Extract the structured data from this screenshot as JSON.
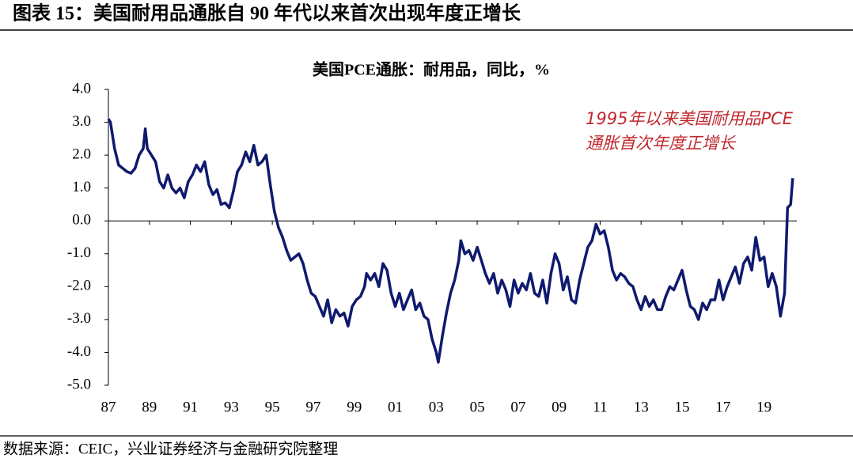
{
  "header": {
    "title": "图表 15：美国耐用品通胀自 90 年代以来首次出现年度正增长"
  },
  "footer": {
    "source": "数据来源：CEIC，兴业证券经济与金融研究院整理"
  },
  "chart_data": {
    "type": "line",
    "title": "美国PCE通胀：耐用品，同比，%",
    "annotation": [
      "1995年以来美国耐用品PCE",
      "通胀首次年度正增长"
    ],
    "color": "#0f1a6e",
    "annotation_color": "#c0282d",
    "xlim": [
      1987,
      2020.6
    ],
    "xticks": [
      {
        "value": 1987,
        "label": "87"
      },
      {
        "value": 1989,
        "label": "89"
      },
      {
        "value": 1991,
        "label": "91"
      },
      {
        "value": 1993,
        "label": "93"
      },
      {
        "value": 1995,
        "label": "95"
      },
      {
        "value": 1997,
        "label": "97"
      },
      {
        "value": 1999,
        "label": "99"
      },
      {
        "value": 2001,
        "label": "01"
      },
      {
        "value": 2003,
        "label": "03"
      },
      {
        "value": 2005,
        "label": "05"
      },
      {
        "value": 2007,
        "label": "07"
      },
      {
        "value": 2009,
        "label": "09"
      },
      {
        "value": 2011,
        "label": "11"
      },
      {
        "value": 2013,
        "label": "13"
      },
      {
        "value": 2015,
        "label": "15"
      },
      {
        "value": 2017,
        "label": "17"
      },
      {
        "value": 2019,
        "label": "19"
      }
    ],
    "ylim": [
      -5,
      4
    ],
    "yticks": [
      {
        "value": -5,
        "label": "-5.0"
      },
      {
        "value": -4,
        "label": "-4.0"
      },
      {
        "value": -3,
        "label": "-3.0"
      },
      {
        "value": -2,
        "label": "-2.0"
      },
      {
        "value": -1,
        "label": "-1.0"
      },
      {
        "value": 0,
        "label": "0.0"
      },
      {
        "value": 1,
        "label": "1.0"
      },
      {
        "value": 2,
        "label": "2.0"
      },
      {
        "value": 3,
        "label": "3.0"
      },
      {
        "value": 4,
        "label": "4.0"
      }
    ],
    "x": [
      1987.0,
      1987.1,
      1987.3,
      1987.5,
      1987.7,
      1987.9,
      1988.1,
      1988.3,
      1988.5,
      1988.7,
      1988.8,
      1988.9,
      1989.1,
      1989.3,
      1989.5,
      1989.7,
      1989.9,
      1990.1,
      1990.3,
      1990.5,
      1990.7,
      1990.9,
      1991.1,
      1991.3,
      1991.5,
      1991.7,
      1991.9,
      1992.1,
      1992.3,
      1992.5,
      1992.7,
      1992.9,
      1993.1,
      1993.3,
      1993.5,
      1993.7,
      1993.9,
      1994.1,
      1994.3,
      1994.5,
      1994.7,
      1994.9,
      1995.1,
      1995.3,
      1995.5,
      1995.7,
      1995.9,
      1996.1,
      1996.3,
      1996.5,
      1996.7,
      1996.9,
      1997.1,
      1997.3,
      1997.5,
      1997.7,
      1997.9,
      1998.1,
      1998.3,
      1998.5,
      1998.7,
      1998.9,
      1999.1,
      1999.3,
      1999.5,
      1999.6,
      1999.8,
      2000.0,
      2000.2,
      2000.4,
      2000.6,
      2000.8,
      2001.0,
      2001.2,
      2001.4,
      2001.6,
      2001.8,
      2002.0,
      2002.2,
      2002.4,
      2002.6,
      2002.8,
      2003.0,
      2003.1,
      2003.3,
      2003.5,
      2003.7,
      2003.9,
      2004.1,
      2004.2,
      2004.4,
      2004.6,
      2004.8,
      2005.0,
      2005.2,
      2005.4,
      2005.6,
      2005.8,
      2006.0,
      2006.2,
      2006.4,
      2006.6,
      2006.8,
      2007.0,
      2007.2,
      2007.4,
      2007.6,
      2007.8,
      2008.0,
      2008.2,
      2008.4,
      2008.6,
      2008.8,
      2009.0,
      2009.2,
      2009.4,
      2009.6,
      2009.8,
      2010.0,
      2010.2,
      2010.4,
      2010.6,
      2010.8,
      2011.0,
      2011.2,
      2011.4,
      2011.6,
      2011.8,
      2012.0,
      2012.2,
      2012.4,
      2012.6,
      2012.8,
      2013.0,
      2013.2,
      2013.4,
      2013.6,
      2013.8,
      2014.0,
      2014.2,
      2014.4,
      2014.6,
      2014.8,
      2015.0,
      2015.2,
      2015.4,
      2015.6,
      2015.8,
      2016.0,
      2016.2,
      2016.4,
      2016.6,
      2016.8,
      2017.0,
      2017.2,
      2017.4,
      2017.6,
      2017.8,
      2018.0,
      2018.2,
      2018.4,
      2018.6,
      2018.8,
      2019.0,
      2019.2,
      2019.4,
      2019.6,
      2019.8,
      2020.0,
      2020.15,
      2020.3,
      2020.4
    ],
    "values": [
      3.1,
      3.0,
      2.2,
      1.7,
      1.6,
      1.5,
      1.45,
      1.6,
      2.0,
      2.2,
      2.8,
      2.2,
      2.0,
      1.8,
      1.2,
      1.0,
      1.4,
      1.0,
      0.85,
      1.0,
      0.7,
      1.2,
      1.4,
      1.7,
      1.5,
      1.8,
      1.1,
      0.8,
      0.95,
      0.5,
      0.55,
      0.4,
      0.9,
      1.5,
      1.7,
      2.1,
      1.8,
      2.3,
      1.7,
      1.8,
      2.0,
      1.1,
      0.3,
      -0.2,
      -0.5,
      -0.9,
      -1.2,
      -1.1,
      -1.0,
      -1.3,
      -1.8,
      -2.2,
      -2.3,
      -2.6,
      -2.9,
      -2.4,
      -3.1,
      -2.7,
      -2.9,
      -2.8,
      -3.2,
      -2.6,
      -2.4,
      -2.3,
      -2.0,
      -1.6,
      -1.8,
      -1.6,
      -2.0,
      -1.3,
      -1.5,
      -2.2,
      -2.6,
      -2.2,
      -2.7,
      -2.4,
      -2.1,
      -2.7,
      -2.5,
      -2.9,
      -3.0,
      -3.6,
      -4.0,
      -4.3,
      -3.5,
      -2.8,
      -2.2,
      -1.8,
      -1.2,
      -0.6,
      -1.0,
      -0.9,
      -1.2,
      -0.8,
      -1.2,
      -1.6,
      -1.9,
      -1.6,
      -2.2,
      -1.8,
      -2.1,
      -2.6,
      -1.8,
      -2.2,
      -1.9,
      -2.1,
      -1.6,
      -2.2,
      -2.3,
      -1.8,
      -2.5,
      -1.6,
      -1.0,
      -1.3,
      -2.1,
      -1.7,
      -2.4,
      -2.5,
      -1.8,
      -1.3,
      -0.8,
      -0.6,
      -0.1,
      -0.4,
      -0.3,
      -0.8,
      -1.5,
      -1.8,
      -1.6,
      -1.7,
      -1.9,
      -2.0,
      -2.4,
      -2.7,
      -2.3,
      -2.6,
      -2.4,
      -2.7,
      -2.7,
      -2.3,
      -2.0,
      -2.1,
      -1.8,
      -1.5,
      -2.1,
      -2.6,
      -2.7,
      -3.0,
      -2.5,
      -2.7,
      -2.4,
      -2.4,
      -1.8,
      -2.4,
      -2.0,
      -1.7,
      -1.4,
      -1.9,
      -1.3,
      -1.1,
      -1.5,
      -0.5,
      -1.2,
      -1.1,
      -2.0,
      -1.6,
      -2.0,
      -2.9,
      -2.2,
      0.4,
      0.5,
      1.3
    ]
  }
}
